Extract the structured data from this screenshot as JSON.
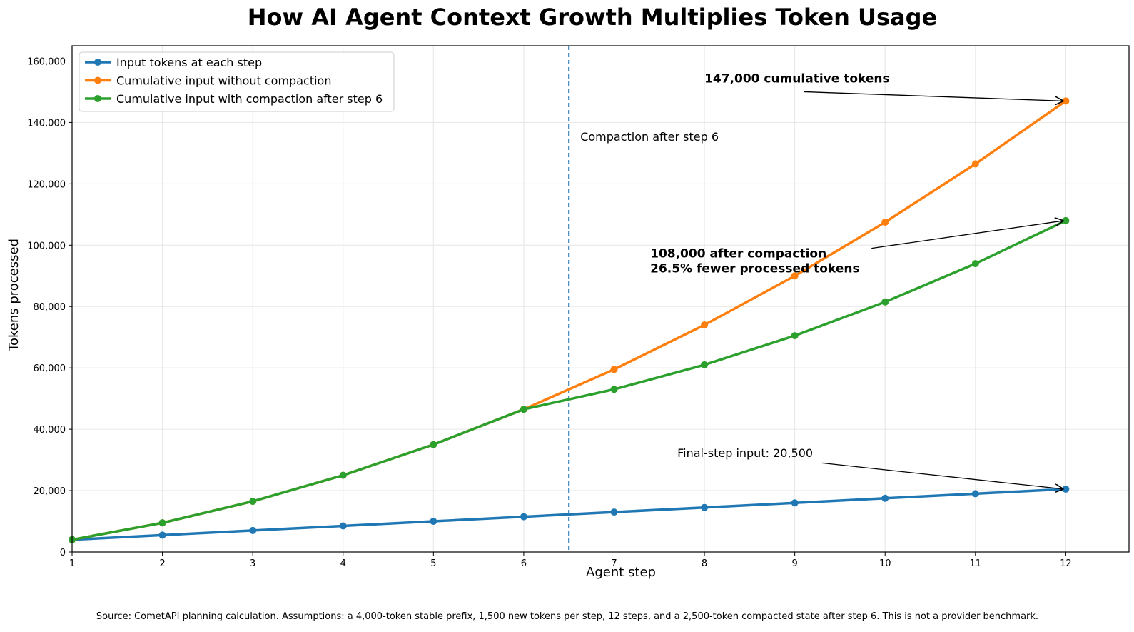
{
  "chart_data": {
    "type": "line",
    "title": "How AI Agent Context Growth Multiplies Token Usage",
    "xlabel": "Agent step",
    "ylabel": "Tokens processed",
    "x": [
      1,
      2,
      3,
      4,
      5,
      6,
      7,
      8,
      9,
      10,
      11,
      12
    ],
    "xlim": [
      1,
      12.7
    ],
    "ylim": [
      0,
      165000
    ],
    "x_ticks": [
      "1",
      "2",
      "3",
      "4",
      "5",
      "6",
      "7",
      "8",
      "9",
      "10",
      "11",
      "12"
    ],
    "y_tick_values": [
      0,
      20000,
      40000,
      60000,
      80000,
      100000,
      120000,
      140000,
      160000
    ],
    "y_tick_labels": [
      "0",
      "20,000",
      "40,000",
      "60,000",
      "80,000",
      "100,000",
      "120,000",
      "140,000",
      "160,000"
    ],
    "grid": true,
    "legend_position": "top-left",
    "series": [
      {
        "name": "Input tokens at each step",
        "color": "#1f77b4",
        "values": [
          4000,
          5500,
          7000,
          8500,
          10000,
          11500,
          13000,
          14500,
          16000,
          17500,
          19000,
          20500
        ]
      },
      {
        "name": "Cumulative input without compaction",
        "color": "#ff7f0e",
        "values": [
          4000,
          9500,
          16500,
          25000,
          35000,
          46500,
          59500,
          74000,
          90000,
          107500,
          126500,
          147000
        ]
      },
      {
        "name": "Cumulative input with compaction after step 6",
        "color": "#2ca02c",
        "values": [
          4000,
          9500,
          16500,
          25000,
          35000,
          46500,
          53000,
          61000,
          70500,
          81500,
          94000,
          108000
        ]
      }
    ],
    "vline": {
      "x": 6.5,
      "color": "#1f77b4",
      "label": "Compaction after step 6"
    },
    "annotations": [
      {
        "id": "cumulative",
        "lines": [
          "147,000 cumulative tokens"
        ],
        "bold": true,
        "text_pos": [
          8,
          153000
        ],
        "point": [
          12,
          147000
        ]
      },
      {
        "id": "compaction",
        "lines": [
          "108,000 after compaction",
          "26.5% fewer processed tokens"
        ],
        "bold": true,
        "text_pos": [
          7.4,
          96000
        ],
        "point": [
          12,
          108000
        ]
      },
      {
        "id": "final-step",
        "lines": [
          "Final-step input: 20,500"
        ],
        "bold": false,
        "text_pos": [
          7.7,
          31000
        ],
        "point": [
          12,
          20500
        ]
      }
    ],
    "footnote": "Source: CometAPI planning calculation. Assumptions: a 4,000-token stable prefix, 1,500 new tokens per step, 12 steps, and a 2,500-token compacted state after step 6. This is not a provider benchmark."
  }
}
